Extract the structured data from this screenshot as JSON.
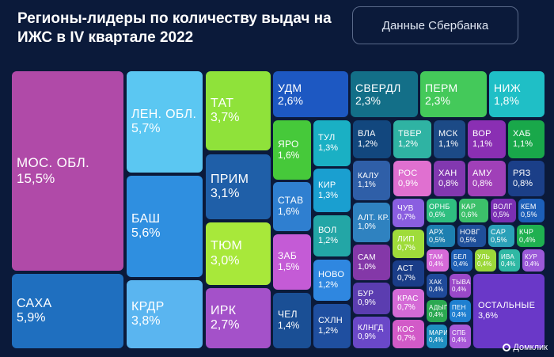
{
  "header": {
    "title": "Регионы-лидеры по количеству выдач на ИЖС в IV квартале 2022",
    "source": "Данные Сбербанка"
  },
  "brand": {
    "name": "Домклик"
  },
  "chart_data": {
    "type": "treemap",
    "title": "Регионы-лидеры по количеству выдач на ИЖС в IV квартале 2022",
    "unit": "%",
    "items": [
      {
        "label": "МОС. ОБЛ.",
        "value": "15,5%",
        "color": "#b04aa8"
      },
      {
        "label": "САХА",
        "value": "5,9%",
        "color": "#1f6fbf"
      },
      {
        "label": "ЛЕН. ОБЛ.",
        "value": "5,7%",
        "color": "#5bc7f2"
      },
      {
        "label": "БАШ",
        "value": "5,6%",
        "color": "#2f8fe0"
      },
      {
        "label": "КРДР",
        "value": "3,8%",
        "color": "#5ab5f0"
      },
      {
        "label": "ТАТ",
        "value": "3,7%",
        "color": "#8fe23a"
      },
      {
        "label": "ПРИМ",
        "value": "3,1%",
        "color": "#1f5fa8"
      },
      {
        "label": "ТЮМ",
        "value": "3,0%",
        "color": "#a8e83a"
      },
      {
        "label": "ИРК",
        "value": "2,7%",
        "color": "#a451c9"
      },
      {
        "label": "УДМ",
        "value": "2,6%",
        "color": "#1d58c2"
      },
      {
        "label": "СВЕРДЛ",
        "value": "2,3%",
        "color": "#136f88"
      },
      {
        "label": "ПЕРМ",
        "value": "2,3%",
        "color": "#44c95a"
      },
      {
        "label": "НИЖ",
        "value": "1,8%",
        "color": "#1fbfc6"
      },
      {
        "label": "ЯРО",
        "value": "1,6%",
        "color": "#46c93a"
      },
      {
        "label": "СТАВ",
        "value": "1,6%",
        "color": "#2f7fd0"
      },
      {
        "label": "ЗАБ",
        "value": "1,5%",
        "color": "#c45bd6"
      },
      {
        "label": "ЧЕЛ",
        "value": "1,4%",
        "color": "#1a4f95"
      },
      {
        "label": "ТУЛ",
        "value": "1,3%",
        "color": "#1ab0c4"
      },
      {
        "label": "КИР",
        "value": "1,3%",
        "color": "#1a9fd0"
      },
      {
        "label": "ВОЛ",
        "value": "1,2%",
        "color": "#23a6a6"
      },
      {
        "label": "НОВО",
        "value": "1,2%",
        "color": "#2f87e0"
      },
      {
        "label": "СХЛН",
        "value": "1,2%",
        "color": "#1f4fa0"
      },
      {
        "label": "ВЛА",
        "value": "1,2%",
        "color": "#12477e"
      },
      {
        "label": "ТВЕР",
        "value": "1,2%",
        "color": "#2fb3a3"
      },
      {
        "label": "МСК",
        "value": "1,1%",
        "color": "#1c4a86"
      },
      {
        "label": "ВОР",
        "value": "1,1%",
        "color": "#8a2fb3"
      },
      {
        "label": "ХАБ",
        "value": "1,1%",
        "color": "#19a84a"
      },
      {
        "label": "КАЛУ",
        "value": "1,1%",
        "color": "#2f5fa8"
      },
      {
        "label": "АЛТ. КР.",
        "value": "1,0%",
        "color": "#2f82c0"
      },
      {
        "label": "САМ",
        "value": "1,0%",
        "color": "#8438a8"
      },
      {
        "label": "БУР",
        "value": "0,9%",
        "color": "#5b3db0"
      },
      {
        "label": "КЛНГД",
        "value": "0,9%",
        "color": "#6a48c8"
      },
      {
        "label": "РОС",
        "value": "0,9%",
        "color": "#e070d0"
      },
      {
        "label": "ХАН",
        "value": "0,8%",
        "color": "#8238b0"
      },
      {
        "label": "АМУ",
        "value": "0,8%",
        "color": "#a040b8"
      },
      {
        "label": "РЯЗ",
        "value": "0,8%",
        "color": "#1b3f88"
      },
      {
        "label": "ЧУВ",
        "value": "0,7%",
        "color": "#8a5ee0"
      },
      {
        "label": "ЛИП",
        "value": "0,7%",
        "color": "#9fdc3a"
      },
      {
        "label": "АСТ",
        "value": "0,7%",
        "color": "#1a3d88"
      },
      {
        "label": "КРАС",
        "value": "0,7%",
        "color": "#d46ad6"
      },
      {
        "label": "КОС",
        "value": "0,7%",
        "color": "#d25ac8"
      },
      {
        "label": "ОРНБ",
        "value": "0,6%",
        "color": "#2fbf80"
      },
      {
        "label": "КАР",
        "value": "0,6%",
        "color": "#3cc06a"
      },
      {
        "label": "ВОЛГ",
        "value": "0,5%",
        "color": "#7a2fb3"
      },
      {
        "label": "КЕМ",
        "value": "0,5%",
        "color": "#1c5fb8"
      },
      {
        "label": "АРХ",
        "value": "0,5%",
        "color": "#1d7fb0"
      },
      {
        "label": "НОВГ",
        "value": "0,5%",
        "color": "#1f4f9a"
      },
      {
        "label": "САР",
        "value": "0,5%",
        "color": "#2aa0b8"
      },
      {
        "label": "КЧР",
        "value": "0,4%",
        "color": "#1fb050"
      },
      {
        "label": "ТАМ",
        "value": "0,4%",
        "color": "#d56ad8"
      },
      {
        "label": "БЕЛ",
        "value": "0,4%",
        "color": "#1e5fb4"
      },
      {
        "label": "УЛЬ",
        "value": "0,4%",
        "color": "#9cd83a"
      },
      {
        "label": "ИВА",
        "value": "0,4%",
        "color": "#2fb8a4"
      },
      {
        "label": "КУР",
        "value": "0,4%",
        "color": "#9a58d8"
      },
      {
        "label": "ХАК",
        "value": "0,4%",
        "color": "#1f4a9a"
      },
      {
        "label": "ТЫВА",
        "value": "0,4%",
        "color": "#9a48c8"
      },
      {
        "label": "АДЫГ",
        "value": "0,4%",
        "color": "#2aa850"
      },
      {
        "label": "ПЕН",
        "value": "0,4%",
        "color": "#1f7fd0"
      },
      {
        "label": "МАРИ",
        "value": "0,4%",
        "color": "#1f8fc0"
      },
      {
        "label": "СПБ",
        "value": "0,4%",
        "color": "#a858d8"
      },
      {
        "label": "ОСТАЛЬНЫЕ",
        "value": "3,6%",
        "color": "#6a38c8"
      }
    ]
  }
}
